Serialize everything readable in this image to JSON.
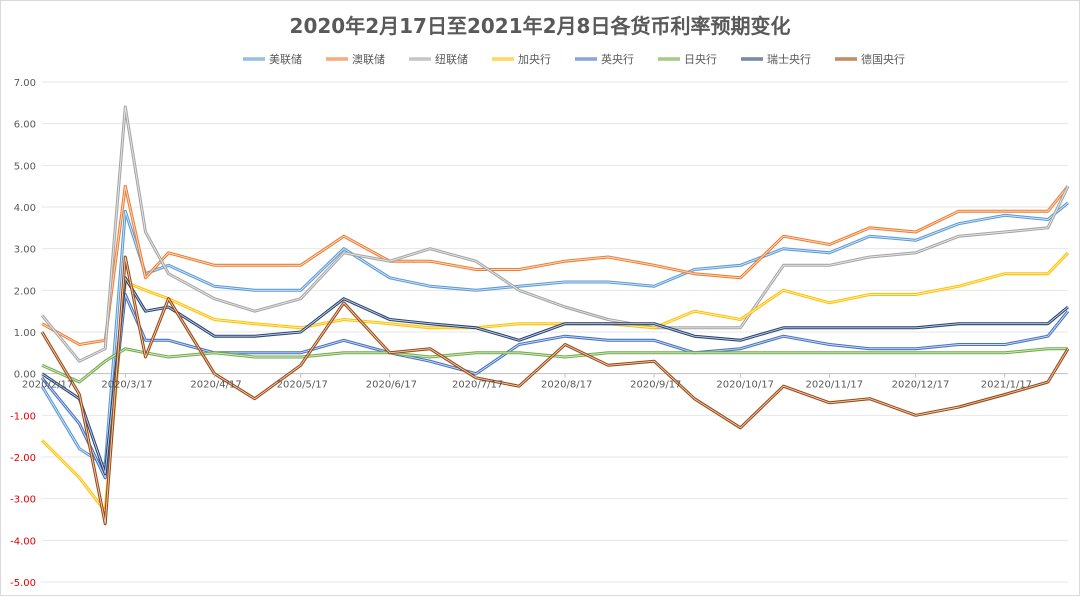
{
  "chart_data": {
    "type": "line",
    "title": "2020年2月17日至2021年2月8日各货币利率预期变化",
    "xlabel": "",
    "ylabel": "",
    "ylim": [
      -5,
      7
    ],
    "yticks": [
      "7.00",
      "6.00",
      "5.00",
      "4.00",
      "3.00",
      "2.00",
      "1.00",
      "0.00",
      "-1.00",
      "-2.00",
      "-3.00",
      "-4.00",
      "-5.00"
    ],
    "x_tick_labels": [
      "2020/2/17",
      "2020/3/17",
      "2020/4/17",
      "2020/5/17",
      "2020/6/17",
      "2020/7/17",
      "2020/8/17",
      "2020/9/17",
      "2020/10/17",
      "2020/11/17",
      "2020/12/17",
      "2021/1/17"
    ],
    "x": [
      "2020-02-17",
      "2020-03-01",
      "2020-03-10",
      "2020-03-17",
      "2020-03-24",
      "2020-04-01",
      "2020-04-17",
      "2020-05-01",
      "2020-05-17",
      "2020-06-01",
      "2020-06-17",
      "2020-07-01",
      "2020-07-17",
      "2020-08-01",
      "2020-08-17",
      "2020-09-01",
      "2020-09-17",
      "2020-10-01",
      "2020-10-17",
      "2020-11-01",
      "2020-11-17",
      "2020-12-01",
      "2020-12-17",
      "2021-01-01",
      "2021-01-17",
      "2021-02-01",
      "2021-02-08"
    ],
    "legend_position": "top",
    "grid": true,
    "series": [
      {
        "name": "美联储",
        "color": "#5b9bd5",
        "values": [
          -0.3,
          -1.8,
          -2.2,
          3.9,
          2.4,
          2.6,
          2.1,
          2.0,
          2.0,
          3.0,
          2.3,
          2.1,
          2.0,
          2.1,
          2.2,
          2.2,
          2.1,
          2.5,
          2.6,
          3.0,
          2.9,
          3.3,
          3.2,
          3.6,
          3.8,
          3.7,
          4.1
        ]
      },
      {
        "name": "澳联储",
        "color": "#ed7d31",
        "values": [
          1.2,
          0.7,
          0.8,
          4.5,
          2.3,
          2.9,
          2.6,
          2.6,
          2.6,
          3.3,
          2.7,
          2.7,
          2.5,
          2.5,
          2.7,
          2.8,
          2.6,
          2.4,
          2.3,
          3.3,
          3.1,
          3.5,
          3.4,
          3.9,
          3.9,
          3.9,
          4.5
        ]
      },
      {
        "name": "纽联储",
        "color": "#a5a5a5",
        "values": [
          1.4,
          0.3,
          0.6,
          6.4,
          3.4,
          2.4,
          1.8,
          1.5,
          1.8,
          2.9,
          2.7,
          3.0,
          2.7,
          2.0,
          1.6,
          1.3,
          1.1,
          1.1,
          1.1,
          2.6,
          2.6,
          2.8,
          2.9,
          3.3,
          3.4,
          3.5,
          4.5
        ]
      },
      {
        "name": "加央行",
        "color": "#ffc000",
        "values": [
          -1.6,
          -2.5,
          -3.3,
          2.2,
          2.0,
          1.8,
          1.3,
          1.2,
          1.1,
          1.3,
          1.2,
          1.1,
          1.1,
          1.2,
          1.2,
          1.2,
          1.1,
          1.5,
          1.3,
          2.0,
          1.7,
          1.9,
          1.9,
          2.1,
          2.4,
          2.4,
          2.9
        ]
      },
      {
        "name": "英央行",
        "color": "#4472c4",
        "values": [
          -0.1,
          -1.2,
          -2.5,
          1.9,
          0.8,
          0.8,
          0.5,
          0.5,
          0.5,
          0.8,
          0.5,
          0.3,
          0.0,
          0.7,
          0.9,
          0.8,
          0.8,
          0.5,
          0.6,
          0.9,
          0.7,
          0.6,
          0.6,
          0.7,
          0.7,
          0.9,
          1.5
        ]
      },
      {
        "name": "日央行",
        "color": "#70ad47",
        "values": [
          0.2,
          -0.2,
          0.3,
          0.6,
          0.5,
          0.4,
          0.5,
          0.4,
          0.4,
          0.5,
          0.5,
          0.4,
          0.5,
          0.5,
          0.4,
          0.5,
          0.5,
          0.5,
          0.5,
          0.5,
          0.5,
          0.5,
          0.5,
          0.5,
          0.5,
          0.6,
          0.6
        ]
      },
      {
        "name": "瑞士央行",
        "color": "#264478",
        "values": [
          0.0,
          -0.6,
          -2.4,
          2.3,
          1.5,
          1.6,
          0.9,
          0.9,
          1.0,
          1.8,
          1.3,
          1.2,
          1.1,
          0.8,
          1.2,
          1.2,
          1.2,
          0.9,
          0.8,
          1.1,
          1.1,
          1.1,
          1.1,
          1.2,
          1.2,
          1.2,
          1.6
        ]
      },
      {
        "name": "德国央行",
        "color": "#9e480e",
        "values": [
          1.0,
          -0.5,
          -3.6,
          2.8,
          0.4,
          1.8,
          0.0,
          -0.6,
          0.2,
          1.7,
          0.5,
          0.6,
          -0.1,
          -0.3,
          0.7,
          0.2,
          0.3,
          -0.6,
          -1.3,
          -0.3,
          -0.7,
          -0.6,
          -1.0,
          -0.8,
          -0.5,
          -0.2,
          0.6
        ]
      }
    ]
  }
}
